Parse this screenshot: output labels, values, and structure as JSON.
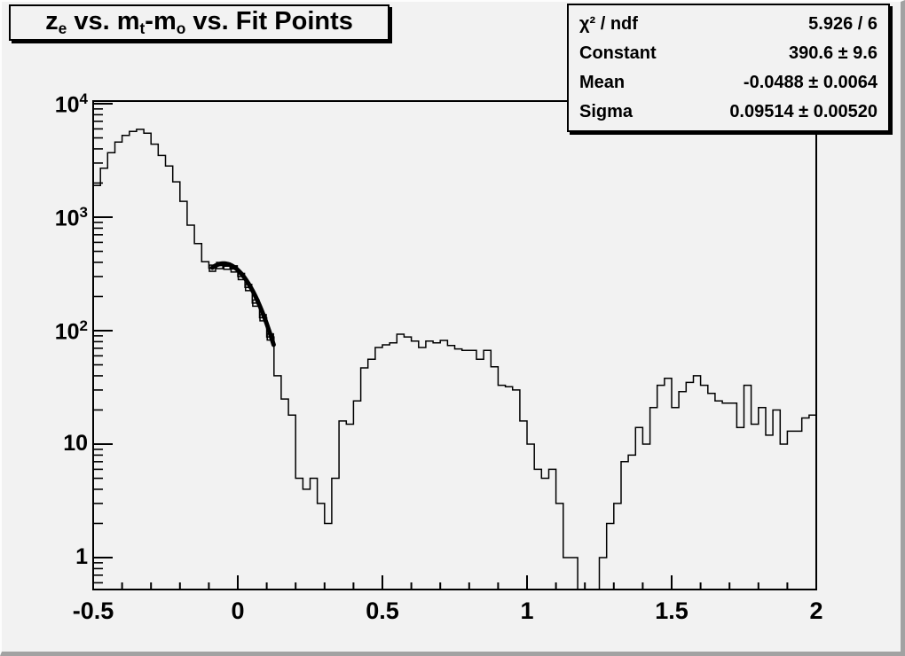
{
  "title": {
    "plain": "z_e vs. m_t-m_o vs. Fit Points",
    "parts": [
      {
        "text": "z"
      },
      {
        "text": "e",
        "sub": true
      },
      {
        "text": " vs. m"
      },
      {
        "text": "t",
        "sub": true
      },
      {
        "text": "-m"
      },
      {
        "text": "o",
        "sub": true
      },
      {
        "text": " vs. Fit Points"
      }
    ]
  },
  "stats": {
    "rows": [
      {
        "label": "χ² / ndf",
        "value": "5.926 / 6"
      },
      {
        "label": "Constant",
        "value": "390.6 ± 9.6"
      },
      {
        "label": "Mean",
        "value": "-0.0488 ± 0.0064"
      },
      {
        "label": "Sigma",
        "value": "0.09514 ± 0.00520"
      }
    ]
  },
  "chart_data": {
    "type": "bar",
    "subtype": "step-histogram",
    "title": "z_e vs. m_t-m_o vs. Fit Points",
    "xlabel": "",
    "ylabel": "",
    "x_axis": {
      "min": -0.5,
      "max": 2,
      "major_ticks": [
        -0.5,
        0,
        0.5,
        1,
        1.5,
        2
      ],
      "tick_labels": [
        "-0.5",
        "0",
        "0.5",
        "1",
        "1.5",
        "2"
      ],
      "minor_step": 0.1
    },
    "y_axis": {
      "scale": "log",
      "min": 0.52,
      "max": 10500,
      "labels": [
        {
          "value": 1,
          "base": "1",
          "exp": ""
        },
        {
          "value": 10,
          "base": "10",
          "exp": ""
        },
        {
          "value": 100,
          "base": "10",
          "exp": "2"
        },
        {
          "value": 1000,
          "base": "10",
          "exp": "3"
        },
        {
          "value": 10000,
          "base": "10",
          "exp": "4"
        }
      ]
    },
    "bins": {
      "start": -0.5,
      "width": 0.025,
      "count": 100,
      "values": [
        1900,
        2700,
        3700,
        4600,
        5250,
        5700,
        5950,
        5500,
        4400,
        3500,
        2830,
        2050,
        1380,
        850,
        585,
        405,
        355,
        375,
        370,
        350,
        300,
        240,
        175,
        130,
        88,
        40,
        25,
        18,
        5,
        4,
        5,
        3,
        2,
        5,
        16,
        15,
        24,
        47,
        56,
        71,
        75,
        78,
        93,
        88,
        81,
        71,
        81,
        78,
        82,
        74,
        69,
        67,
        67,
        56,
        67,
        48,
        33,
        32,
        30,
        16,
        10,
        6,
        5,
        6,
        3,
        1,
        1,
        0,
        0,
        0,
        1,
        2,
        3,
        7,
        8,
        14,
        10,
        21,
        33,
        38,
        21,
        29,
        35,
        40,
        33,
        28,
        24,
        23,
        23,
        14,
        33,
        15,
        21,
        12,
        20,
        10,
        13,
        13,
        17,
        18
      ]
    },
    "fit": {
      "type": "gaussian",
      "constant": 390.6,
      "mean": -0.0488,
      "sigma": 0.09514,
      "chi2": 5.926,
      "ndf": 6,
      "draw_range": [
        -0.088,
        0.124
      ]
    },
    "fit_points": {
      "marker": "open-square",
      "x": [
        -0.0875,
        -0.0625,
        -0.0375,
        -0.0125,
        0.0125,
        0.0375,
        0.0625,
        0.0875,
        0.1125
      ],
      "y": [
        355,
        375,
        370,
        350,
        300,
        240,
        175,
        130,
        88
      ]
    },
    "legend": null,
    "grid": false,
    "colors": {
      "line": "#000000",
      "background": "#f2f2f2",
      "pave_fill": "#f2f2f2"
    }
  }
}
